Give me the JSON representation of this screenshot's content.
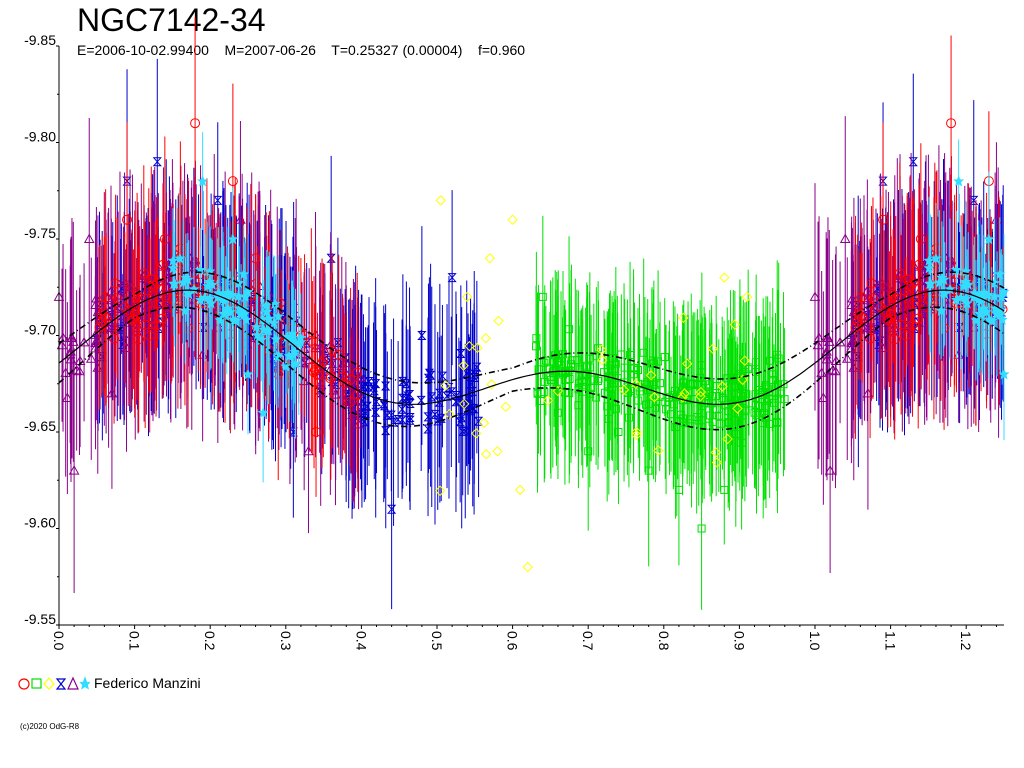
{
  "chart_data": {
    "type": "scatter",
    "title": "NGC7142-34",
    "subtitle": "E=2006-10-02.99400    M=2007-06-26    T=0.25327 (0.00004)    f=0.960",
    "xlabel": "",
    "ylabel": "",
    "xlim": [
      0.0,
      1.25
    ],
    "ylim": [
      -9.55,
      -9.85
    ],
    "x_ticks": [
      "0.0",
      "0.1",
      "0.2",
      "0.3",
      "0.4",
      "0.5",
      "0.6",
      "0.7",
      "0.8",
      "0.9",
      "1.0",
      "1.1",
      "1.2"
    ],
    "y_ticks": [
      "-9.85",
      "-9.80",
      "-9.75",
      "-9.70",
      "-9.65",
      "-9.60",
      "-9.55"
    ],
    "grid": false,
    "legend_position": "bottom-left",
    "legend_label": "Federico Manzini",
    "series": [
      {
        "marker": "circle",
        "color": "#ff0000",
        "phase_range": [
          0.05,
          0.4
        ],
        "x": [
          0.06,
          0.09,
          0.12,
          0.14,
          0.18,
          0.2,
          0.23,
          0.26,
          0.29,
          0.32,
          0.34,
          0.37
        ],
        "y": [
          -9.71,
          -9.76,
          -9.7,
          -9.75,
          -9.81,
          -9.73,
          -9.78,
          -9.74,
          -9.68,
          -9.7,
          -9.65,
          -9.69
        ]
      },
      {
        "marker": "square",
        "color": "#00e000",
        "phase_range": [
          0.63,
          0.96
        ],
        "x": [
          0.64,
          0.66,
          0.7,
          0.74,
          0.78,
          0.82,
          0.85,
          0.88,
          0.92,
          0.95
        ],
        "y": [
          -9.72,
          -9.66,
          -9.64,
          -9.65,
          -9.63,
          -9.62,
          -9.6,
          -9.62,
          -9.66,
          -9.69
        ]
      },
      {
        "marker": "diamond",
        "color": "#ffff00",
        "phase_range": [
          0.5,
          0.93
        ],
        "x": [
          0.505,
          0.54,
          0.57,
          0.58,
          0.6,
          0.61,
          0.62,
          0.88,
          0.91
        ],
        "y": [
          -9.77,
          -9.72,
          -9.74,
          -9.64,
          -9.76,
          -9.62,
          -9.58,
          -9.73,
          -9.72
        ]
      },
      {
        "marker": "hourglass",
        "color": "#0000cc",
        "phase_range": [
          0.05,
          0.56
        ],
        "x": [
          0.09,
          0.13,
          0.17,
          0.21,
          0.26,
          0.31,
          0.36,
          0.4,
          0.44,
          0.48,
          0.52,
          0.55
        ],
        "y": [
          -9.78,
          -9.79,
          -9.74,
          -9.77,
          -9.7,
          -9.65,
          -9.74,
          -9.66,
          -9.61,
          -9.7,
          -9.73,
          -9.68
        ]
      },
      {
        "marker": "triangle",
        "color": "#8b008b",
        "phase_range": [
          0.0,
          0.4
        ],
        "x": [
          0.0,
          0.02,
          0.04,
          0.07,
          0.1,
          0.15,
          0.19,
          0.24,
          0.28,
          0.33,
          0.38
        ],
        "y": [
          -9.72,
          -9.63,
          -9.75,
          -9.67,
          -9.71,
          -9.74,
          -9.69,
          -9.76,
          -9.72,
          -9.64,
          -9.68
        ]
      },
      {
        "marker": "star",
        "color": "#33ddff",
        "phase_range": [
          0.15,
          0.32
        ],
        "x": [
          0.16,
          0.19,
          0.21,
          0.23,
          0.25,
          0.27,
          0.29,
          0.31
        ],
        "y": [
          -9.74,
          -9.78,
          -9.72,
          -9.75,
          -9.68,
          -9.66,
          -9.71,
          -9.69
        ]
      }
    ],
    "fit_curve": {
      "description": "mean sinusoidal fit with upper/lower bounds",
      "amplitude": 0.035,
      "mean": -9.685,
      "period_phase": 1.0,
      "peak_phase": 0.17,
      "band": 0.006
    }
  },
  "colors": {
    "background": "#ffffff",
    "axis": "#000000",
    "fit": "#000000"
  }
}
